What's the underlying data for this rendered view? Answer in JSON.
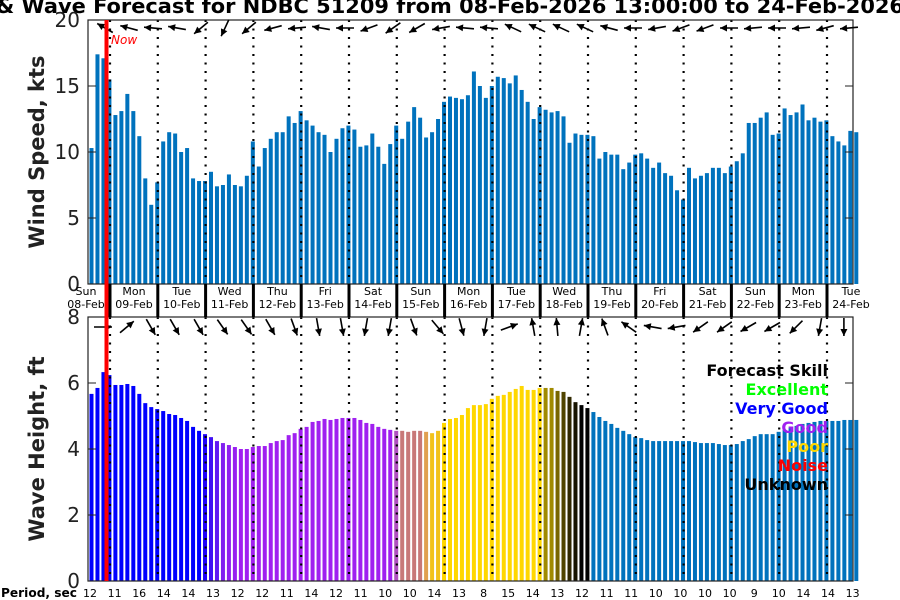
{
  "title": "& Wave Forecast for NDBC 51209 from 08-Feb-2026 13:00:00 to 24-Feb-2026",
  "now_label": "Now",
  "period_label": "Period, sec",
  "chart_data": [
    {
      "type": "bar",
      "title": "Wind Speed",
      "ylabel": "Wind Speed, kts",
      "ylim": [
        0,
        20
      ],
      "yticks": [
        "0",
        "5",
        "10",
        "15",
        "20"
      ],
      "x_interval_hours": 3,
      "start": "08-Feb-2026 13:00",
      "color": "#0072bd",
      "values": [
        10.3,
        17.4,
        17.1,
        15.5,
        12.8,
        13.1,
        14.4,
        13.1,
        11.2,
        8.0,
        6.0,
        7.7,
        10.8,
        11.5,
        11.4,
        10.0,
        10.3,
        8.0,
        7.8,
        7.8,
        8.5,
        7.4,
        7.5,
        8.3,
        7.5,
        7.4,
        8.2,
        10.8,
        8.9,
        10.3,
        11.0,
        11.5,
        11.5,
        12.7,
        12.2,
        13.1,
        12.4,
        12.0,
        11.5,
        11.3,
        10.0,
        11.0,
        11.8,
        12.0,
        11.7,
        10.4,
        10.5,
        11.4,
        10.4,
        9.1,
        10.6,
        12.0,
        11.0,
        12.3,
        13.4,
        12.6,
        11.1,
        11.5,
        12.5,
        13.8,
        14.2,
        14.1,
        14.0,
        14.3,
        16.1,
        15.0,
        14.1,
        15.0,
        15.7,
        15.6,
        15.2,
        15.8,
        14.7,
        13.8,
        12.5,
        13.4,
        13.2,
        13.0,
        13.1,
        12.7,
        10.7,
        11.4,
        11.3,
        11.3,
        11.2,
        9.5,
        10.0,
        9.8,
        9.8,
        8.7,
        9.2,
        9.8,
        9.9,
        9.5,
        8.8,
        9.2,
        8.4,
        8.2,
        7.1,
        6.4,
        8.8,
        8.0,
        8.2,
        8.4,
        8.8,
        8.8,
        8.4,
        8.9,
        9.3,
        9.9,
        12.2,
        12.2,
        12.6,
        13.0,
        11.3,
        11.4,
        13.3,
        12.8,
        13.0,
        13.6,
        12.4,
        12.6,
        12.3,
        12.4,
        11.2,
        10.8,
        10.5,
        11.6,
        11.5
      ],
      "direction_arrows_deg": [
        150,
        165,
        175,
        170,
        220,
        245,
        220,
        195,
        185,
        170,
        180,
        200,
        215,
        210,
        190,
        175,
        175,
        155,
        155,
        155,
        155,
        165,
        180,
        190,
        200,
        200,
        180,
        185,
        180,
        185,
        195,
        185
      ]
    },
    {
      "type": "bar",
      "title": "Wave Height",
      "ylabel": "Wave Height, ft",
      "ylim": [
        0,
        8
      ],
      "yticks": [
        "0",
        "2",
        "4",
        "6",
        "8"
      ],
      "x_interval_hours": 3,
      "start": "08-Feb-2026 13:00",
      "values": [
        5.67,
        5.85,
        6.33,
        6.24,
        5.94,
        5.94,
        5.97,
        5.91,
        5.67,
        5.39,
        5.27,
        5.21,
        5.15,
        5.06,
        5.03,
        4.94,
        4.85,
        4.67,
        4.55,
        4.45,
        4.36,
        4.24,
        4.18,
        4.12,
        4.06,
        4.0,
        4.0,
        4.06,
        4.09,
        4.09,
        4.18,
        4.24,
        4.27,
        4.42,
        4.48,
        4.61,
        4.67,
        4.82,
        4.85,
        4.91,
        4.88,
        4.91,
        4.94,
        4.94,
        4.94,
        4.88,
        4.79,
        4.76,
        4.67,
        4.61,
        4.58,
        4.55,
        4.55,
        4.52,
        4.55,
        4.55,
        4.52,
        4.48,
        4.55,
        4.79,
        4.91,
        4.94,
        5.03,
        5.24,
        5.33,
        5.33,
        5.36,
        5.52,
        5.61,
        5.64,
        5.73,
        5.82,
        5.91,
        5.79,
        5.79,
        5.85,
        5.85,
        5.85,
        5.76,
        5.73,
        5.58,
        5.42,
        5.33,
        5.24,
        5.12,
        4.97,
        4.85,
        4.76,
        4.64,
        4.55,
        4.45,
        4.36,
        4.33,
        4.27,
        4.24,
        4.24,
        4.24,
        4.24,
        4.24,
        4.24,
        4.24,
        4.21,
        4.18,
        4.18,
        4.18,
        4.15,
        4.12,
        4.12,
        4.15,
        4.24,
        4.3,
        4.39,
        4.45,
        4.45,
        4.45,
        4.52,
        4.58,
        4.64,
        4.7,
        4.76,
        4.79,
        4.82,
        4.85,
        4.85,
        4.85,
        4.85,
        4.88,
        4.88,
        4.88
      ],
      "skill_color_runs": [
        [
          19,
          "#0000ff"
        ],
        [
          1,
          "#2000fa"
        ],
        [
          1,
          "#4010f5"
        ],
        [
          1,
          "#6018f2"
        ],
        [
          1,
          "#8020f0"
        ],
        [
          1,
          "#9020f0"
        ],
        [
          1,
          "#9820f0"
        ],
        [
          26,
          "#a020f0"
        ],
        [
          1,
          "#b050c0"
        ],
        [
          4,
          "#c87878"
        ],
        [
          1,
          "#e0a050"
        ],
        [
          2,
          "#f2c21a"
        ],
        [
          17,
          "#ffd700"
        ],
        [
          2,
          "#a08a00"
        ],
        [
          1,
          "#786600"
        ],
        [
          1,
          "#504400"
        ],
        [
          1,
          "#302800"
        ],
        [
          1,
          "#181400"
        ],
        [
          2,
          "#000000"
        ],
        [
          45,
          "#0072bd"
        ]
      ],
      "direction_arrows_deg": [
        0,
        40,
        -60,
        -60,
        -60,
        -55,
        -55,
        -60,
        -70,
        -80,
        -80,
        -100,
        -100,
        -70,
        -50,
        -75,
        -100,
        20,
        100,
        95,
        80,
        110,
        145,
        170,
        190,
        215,
        215,
        210,
        210,
        225,
        -100,
        -90
      ],
      "periods_sec": [
        "12",
        "11",
        "16",
        "14",
        "14",
        "13",
        "12",
        "12",
        "11",
        "14",
        "12",
        "11",
        "10",
        "10",
        "14",
        "13",
        "8",
        "15",
        "14",
        "13",
        "12",
        "11",
        "11",
        "10",
        "10",
        "10",
        "10",
        "9",
        "10",
        "14",
        "14",
        "13"
      ],
      "legend": {
        "title": {
          "text": "Forecast Skill",
          "color": "#000000"
        },
        "items": [
          {
            "text": "Excellent",
            "color": "#00ff00"
          },
          {
            "text": "Very Good",
            "color": "#0000ff"
          },
          {
            "text": "Good",
            "color": "#a020f0"
          },
          {
            "text": "Poor",
            "color": "#ffd700"
          },
          {
            "text": "Noise",
            "color": "#ff0000"
          },
          {
            "text": "Unknown",
            "color": "#000000"
          }
        ],
        "placement": "top-right"
      }
    }
  ],
  "days": [
    {
      "weekday": "Sun",
      "date": "08-Feb"
    },
    {
      "weekday": "Mon",
      "date": "09-Feb"
    },
    {
      "weekday": "Tue",
      "date": "10-Feb"
    },
    {
      "weekday": "Wed",
      "date": "11-Feb"
    },
    {
      "weekday": "Thu",
      "date": "12-Feb"
    },
    {
      "weekday": "Fri",
      "date": "13-Feb"
    },
    {
      "weekday": "Sat",
      "date": "14-Feb"
    },
    {
      "weekday": "Sun",
      "date": "15-Feb"
    },
    {
      "weekday": "Mon",
      "date": "16-Feb"
    },
    {
      "weekday": "Tue",
      "date": "17-Feb"
    },
    {
      "weekday": "Wed",
      "date": "18-Feb"
    },
    {
      "weekday": "Thu",
      "date": "19-Feb"
    },
    {
      "weekday": "Fri",
      "date": "20-Feb"
    },
    {
      "weekday": "Sat",
      "date": "21-Feb"
    },
    {
      "weekday": "Sun",
      "date": "22-Feb"
    },
    {
      "weekday": "Mon",
      "date": "23-Feb"
    },
    {
      "weekday": "Tue",
      "date": "24-Feb"
    }
  ],
  "colors": {
    "now_line": "#ff0000",
    "bar_default": "#0072bd"
  }
}
